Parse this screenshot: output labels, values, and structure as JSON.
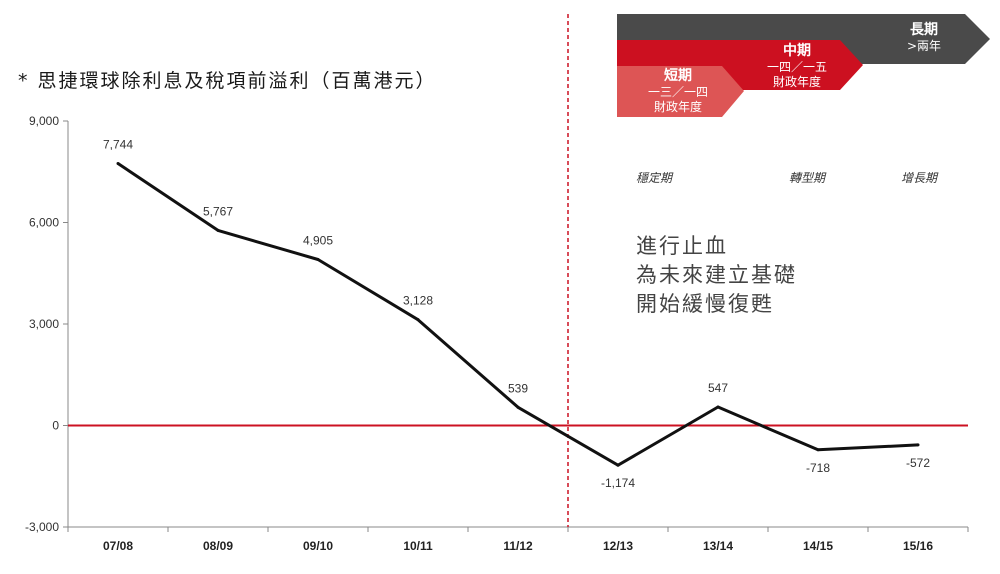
{
  "title": {
    "marker": "*",
    "text": "思捷環球除利息及稅項前溢利（百萬港元）"
  },
  "annotation": {
    "lines": [
      "進行止血",
      "為未來建立基礎",
      "開始緩慢復甦"
    ]
  },
  "phases": [
    "穩定期",
    "轉型期",
    "增長期"
  ],
  "horizon_arrows": {
    "short": {
      "title": "短期",
      "line1": "一三／一四",
      "line2": "財政年度"
    },
    "mid": {
      "title": "中期",
      "line1": "一四／一五",
      "line2": "財政年度"
    },
    "long": {
      "title": "長期",
      "line1": ">兩年"
    }
  },
  "colors": {
    "line": "#111111",
    "zero_line": "#cc1122",
    "divider": "#cc1122",
    "short_arrow": "#dd5555",
    "mid_arrow": "#cc1020",
    "long_arrow": "#4a4a4a",
    "axis": "#888888"
  },
  "chart_data": {
    "type": "line",
    "title": "思捷環球除利息及稅項前溢利（百萬港元）",
    "categories": [
      "07/08",
      "08/09",
      "09/10",
      "10/11",
      "11/12",
      "12/13",
      "13/14",
      "14/15",
      "15/16"
    ],
    "series": [
      {
        "values": [
          7744,
          5767,
          4905,
          3128,
          539,
          -1174,
          547,
          -718,
          -572
        ],
        "labels": [
          "7,744",
          "5,767",
          "4,905",
          "3,128",
          "539",
          "-1,174",
          "547",
          "-718",
          "-572"
        ]
      }
    ],
    "yticks": [
      {
        "value": -3000,
        "label": "-3,000"
      },
      {
        "value": 0,
        "label": "0"
      },
      {
        "value": 3000,
        "label": "3,000"
      },
      {
        "value": 6000,
        "label": "6,000"
      },
      {
        "value": 9000,
        "label": "9,000"
      }
    ],
    "ylim": [
      -3000,
      9000
    ],
    "reference_line": 0,
    "divider_between": [
      "11/12",
      "12/13"
    ],
    "grid": false,
    "legend": "none"
  }
}
